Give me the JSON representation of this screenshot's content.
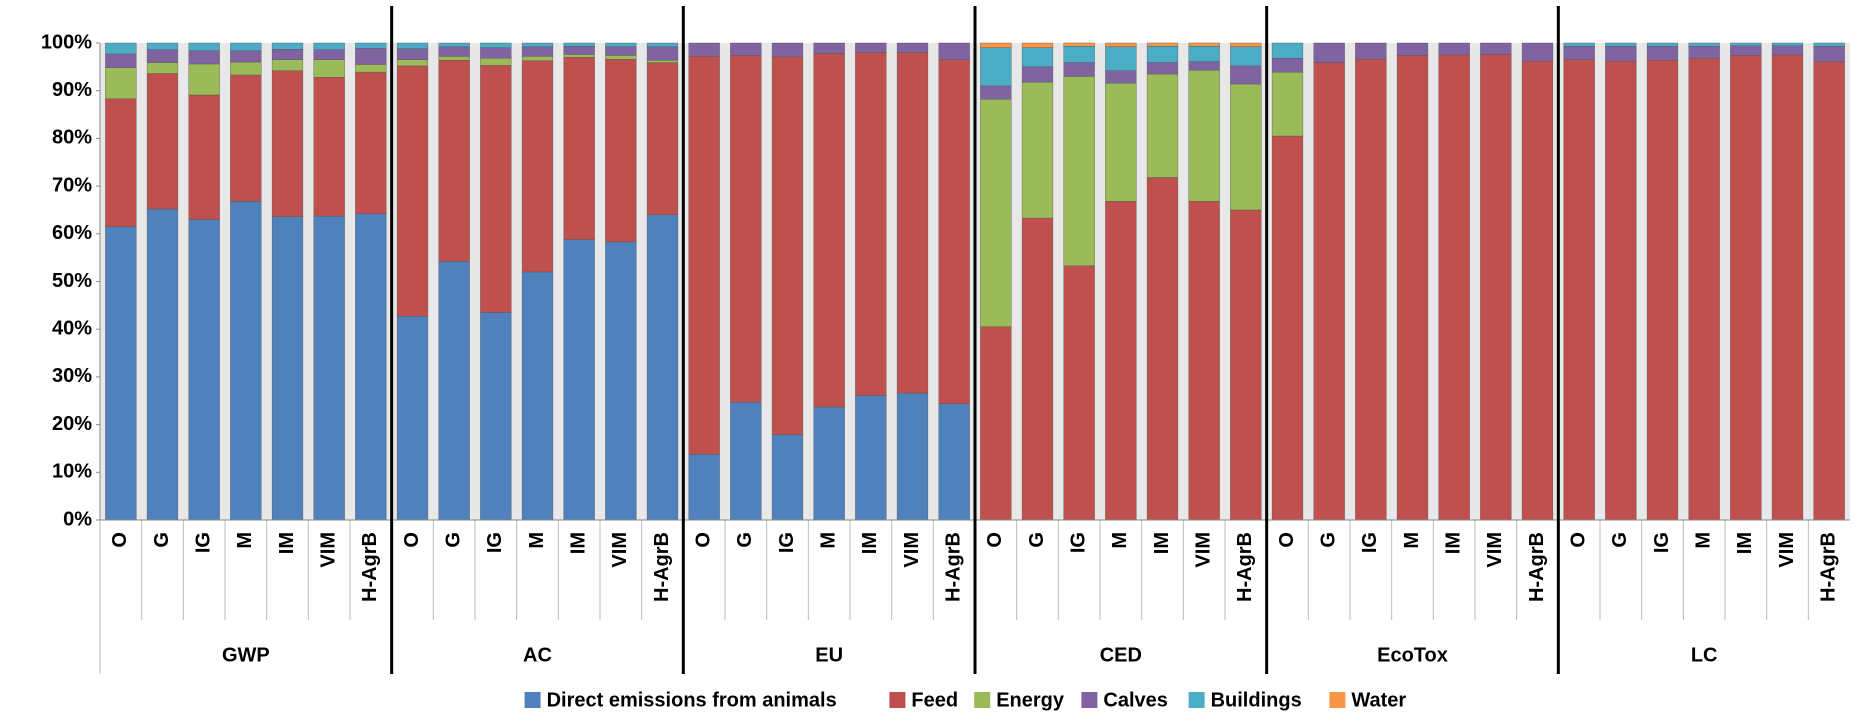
{
  "chart_data": {
    "type": "stacked_bar",
    "categories": [
      "O",
      "G",
      "IG",
      "M",
      "IM",
      "VIM",
      "H-AgrB",
      "O",
      "G",
      "IG",
      "M",
      "IM",
      "VIM",
      "H-AgrB",
      "O",
      "G",
      "IG",
      "M",
      "IM",
      "VIM",
      "H-AgrB",
      "O",
      "G",
      "IG",
      "M",
      "IM",
      "VIM",
      "H-AgrB",
      "O",
      "G",
      "IG",
      "M",
      "IM",
      "VIM",
      "H-AgrB",
      "O",
      "G",
      "IG",
      "M",
      "IM",
      "VIM",
      "H-AgrB"
    ],
    "groups": [
      "GWP",
      "AC",
      "EU",
      "CED",
      "EcoTox",
      "LC"
    ],
    "series": [
      {
        "name": "Direct emissions from animals",
        "color": "#4f81bd",
        "values": [
          61.5,
          65.2,
          63,
          66.8,
          63.6,
          63.7,
          64.2,
          42.7,
          54.2,
          43.5,
          52,
          58.8,
          58.3,
          64,
          13.8,
          24.7,
          17.9,
          23.7,
          26.1,
          26.6,
          24.4,
          0,
          0,
          0,
          0,
          0,
          0,
          0,
          0,
          0,
          0,
          0,
          0,
          0,
          0,
          0,
          0,
          0,
          0,
          0,
          0,
          0
        ]
      },
      {
        "name": "Feed",
        "color": "#c0504d",
        "values": [
          26.8,
          28.4,
          26.1,
          26.5,
          30.6,
          29.1,
          29.7,
          52.5,
          42.2,
          51.8,
          44.3,
          38.2,
          38.3,
          31.9,
          83.4,
          72.7,
          79.2,
          74.1,
          71.9,
          71.4,
          72.1,
          40.5,
          63.3,
          53.3,
          66.8,
          71.8,
          66.8,
          65,
          80.5,
          95.9,
          96.6,
          97.4,
          97.5,
          97.6,
          96.2,
          96.5,
          96.2,
          96.4,
          96.8,
          97.4,
          97.5,
          96.1
        ]
      },
      {
        "name": "Energy",
        "color": "#9bbb59",
        "values": [
          6.5,
          2.3,
          6.5,
          2.7,
          2.3,
          3.7,
          1.6,
          1.3,
          0.8,
          1.5,
          0.9,
          0.6,
          0.8,
          0.5,
          0,
          0,
          0,
          0,
          0,
          0,
          0,
          47.7,
          28.5,
          39.7,
          24.8,
          21.7,
          27.5,
          26.4,
          13.4,
          0,
          0,
          0,
          0,
          0,
          0,
          0,
          0,
          0,
          0,
          0,
          0,
          0
        ]
      },
      {
        "name": "Calves",
        "color": "#8064a2",
        "values": [
          2.9,
          2.7,
          2.8,
          2.4,
          2.2,
          2.1,
          3.4,
          2.3,
          2,
          2.2,
          2,
          1.7,
          1.8,
          2.8,
          2.8,
          2.6,
          2.9,
          2.2,
          2,
          2,
          3.5,
          2.8,
          3.2,
          2.9,
          2.6,
          2.4,
          1.8,
          3.8,
          2.9,
          4.1,
          3.4,
          2.6,
          2.5,
          2.4,
          3.8,
          2.8,
          3.1,
          2.9,
          2.5,
          2,
          1.9,
          3.2
        ]
      },
      {
        "name": "Buildings",
        "color": "#4bacc6",
        "values": [
          2.3,
          1.4,
          1.6,
          1.6,
          1.3,
          1.4,
          1.1,
          1.2,
          0.8,
          1,
          0.8,
          0.7,
          0.8,
          0.8,
          0,
          0,
          0,
          0,
          0,
          0,
          0,
          8,
          4,
          3.4,
          5,
          3.4,
          3.2,
          4,
          3.2,
          0,
          0,
          0,
          0,
          0,
          0,
          0.7,
          0.7,
          0.7,
          0.7,
          0.6,
          0.6,
          0.7
        ]
      },
      {
        "name": "Water",
        "color": "#f79646",
        "values": [
          0,
          0,
          0,
          0,
          0,
          0,
          0,
          0,
          0,
          0,
          0,
          0,
          0,
          0,
          0,
          0,
          0,
          0,
          0,
          0,
          0,
          1,
          1,
          0.7,
          0.8,
          0.7,
          0.7,
          0.8,
          0,
          0,
          0,
          0,
          0,
          0,
          0,
          0,
          0,
          0,
          0,
          0,
          0,
          0
        ]
      }
    ],
    "ylim": [
      0,
      100
    ],
    "yticks": [
      {
        "value": 0,
        "label": "0%"
      },
      {
        "value": 10,
        "label": "10%"
      },
      {
        "value": 20,
        "label": "20%"
      },
      {
        "value": 30,
        "label": "30%"
      },
      {
        "value": 40,
        "label": "40%"
      },
      {
        "value": 50,
        "label": "50%"
      },
      {
        "value": 60,
        "label": "60%"
      },
      {
        "value": 70,
        "label": "70%"
      },
      {
        "value": 80,
        "label": "80%"
      },
      {
        "value": 90,
        "label": "90%"
      },
      {
        "value": 100,
        "label": "100%"
      }
    ],
    "legend": "bottom"
  }
}
